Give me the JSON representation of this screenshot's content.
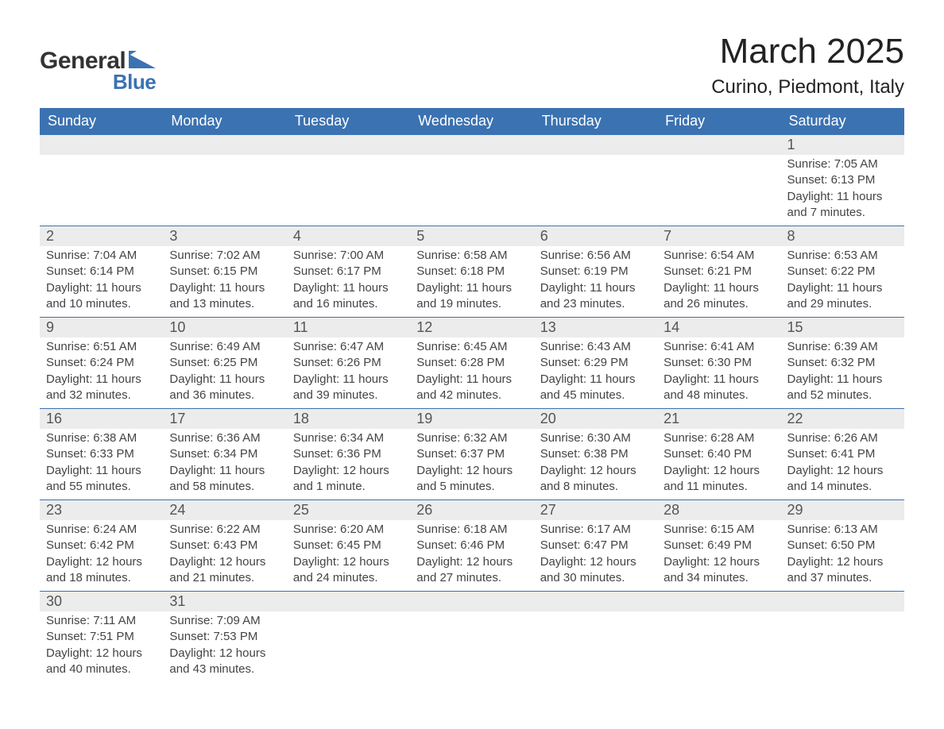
{
  "logo": {
    "text_main": "General",
    "text_sub": "Blue",
    "shape_color": "#3b72b1",
    "main_color": "#333333",
    "sub_color": "#3b72b1"
  },
  "title": "March 2025",
  "location": "Curino, Piedmont, Italy",
  "colors": {
    "header_bg": "#3b72b1",
    "header_text": "#ffffff",
    "daynum_bg": "#ececec",
    "body_text": "#444444",
    "row_border": "#3b72b1",
    "page_bg": "#ffffff"
  },
  "fonts": {
    "title_size_pt": 33,
    "location_size_pt": 18,
    "weekday_size_pt": 14,
    "daynum_size_pt": 14,
    "body_size_pt": 11
  },
  "weekdays": [
    "Sunday",
    "Monday",
    "Tuesday",
    "Wednesday",
    "Thursday",
    "Friday",
    "Saturday"
  ],
  "weeks": [
    [
      null,
      null,
      null,
      null,
      null,
      null,
      {
        "n": "1",
        "sunrise": "Sunrise: 7:05 AM",
        "sunset": "Sunset: 6:13 PM",
        "daylight": "Daylight: 11 hours and 7 minutes."
      }
    ],
    [
      {
        "n": "2",
        "sunrise": "Sunrise: 7:04 AM",
        "sunset": "Sunset: 6:14 PM",
        "daylight": "Daylight: 11 hours and 10 minutes."
      },
      {
        "n": "3",
        "sunrise": "Sunrise: 7:02 AM",
        "sunset": "Sunset: 6:15 PM",
        "daylight": "Daylight: 11 hours and 13 minutes."
      },
      {
        "n": "4",
        "sunrise": "Sunrise: 7:00 AM",
        "sunset": "Sunset: 6:17 PM",
        "daylight": "Daylight: 11 hours and 16 minutes."
      },
      {
        "n": "5",
        "sunrise": "Sunrise: 6:58 AM",
        "sunset": "Sunset: 6:18 PM",
        "daylight": "Daylight: 11 hours and 19 minutes."
      },
      {
        "n": "6",
        "sunrise": "Sunrise: 6:56 AM",
        "sunset": "Sunset: 6:19 PM",
        "daylight": "Daylight: 11 hours and 23 minutes."
      },
      {
        "n": "7",
        "sunrise": "Sunrise: 6:54 AM",
        "sunset": "Sunset: 6:21 PM",
        "daylight": "Daylight: 11 hours and 26 minutes."
      },
      {
        "n": "8",
        "sunrise": "Sunrise: 6:53 AM",
        "sunset": "Sunset: 6:22 PM",
        "daylight": "Daylight: 11 hours and 29 minutes."
      }
    ],
    [
      {
        "n": "9",
        "sunrise": "Sunrise: 6:51 AM",
        "sunset": "Sunset: 6:24 PM",
        "daylight": "Daylight: 11 hours and 32 minutes."
      },
      {
        "n": "10",
        "sunrise": "Sunrise: 6:49 AM",
        "sunset": "Sunset: 6:25 PM",
        "daylight": "Daylight: 11 hours and 36 minutes."
      },
      {
        "n": "11",
        "sunrise": "Sunrise: 6:47 AM",
        "sunset": "Sunset: 6:26 PM",
        "daylight": "Daylight: 11 hours and 39 minutes."
      },
      {
        "n": "12",
        "sunrise": "Sunrise: 6:45 AM",
        "sunset": "Sunset: 6:28 PM",
        "daylight": "Daylight: 11 hours and 42 minutes."
      },
      {
        "n": "13",
        "sunrise": "Sunrise: 6:43 AM",
        "sunset": "Sunset: 6:29 PM",
        "daylight": "Daylight: 11 hours and 45 minutes."
      },
      {
        "n": "14",
        "sunrise": "Sunrise: 6:41 AM",
        "sunset": "Sunset: 6:30 PM",
        "daylight": "Daylight: 11 hours and 48 minutes."
      },
      {
        "n": "15",
        "sunrise": "Sunrise: 6:39 AM",
        "sunset": "Sunset: 6:32 PM",
        "daylight": "Daylight: 11 hours and 52 minutes."
      }
    ],
    [
      {
        "n": "16",
        "sunrise": "Sunrise: 6:38 AM",
        "sunset": "Sunset: 6:33 PM",
        "daylight": "Daylight: 11 hours and 55 minutes."
      },
      {
        "n": "17",
        "sunrise": "Sunrise: 6:36 AM",
        "sunset": "Sunset: 6:34 PM",
        "daylight": "Daylight: 11 hours and 58 minutes."
      },
      {
        "n": "18",
        "sunrise": "Sunrise: 6:34 AM",
        "sunset": "Sunset: 6:36 PM",
        "daylight": "Daylight: 12 hours and 1 minute."
      },
      {
        "n": "19",
        "sunrise": "Sunrise: 6:32 AM",
        "sunset": "Sunset: 6:37 PM",
        "daylight": "Daylight: 12 hours and 5 minutes."
      },
      {
        "n": "20",
        "sunrise": "Sunrise: 6:30 AM",
        "sunset": "Sunset: 6:38 PM",
        "daylight": "Daylight: 12 hours and 8 minutes."
      },
      {
        "n": "21",
        "sunrise": "Sunrise: 6:28 AM",
        "sunset": "Sunset: 6:40 PM",
        "daylight": "Daylight: 12 hours and 11 minutes."
      },
      {
        "n": "22",
        "sunrise": "Sunrise: 6:26 AM",
        "sunset": "Sunset: 6:41 PM",
        "daylight": "Daylight: 12 hours and 14 minutes."
      }
    ],
    [
      {
        "n": "23",
        "sunrise": "Sunrise: 6:24 AM",
        "sunset": "Sunset: 6:42 PM",
        "daylight": "Daylight: 12 hours and 18 minutes."
      },
      {
        "n": "24",
        "sunrise": "Sunrise: 6:22 AM",
        "sunset": "Sunset: 6:43 PM",
        "daylight": "Daylight: 12 hours and 21 minutes."
      },
      {
        "n": "25",
        "sunrise": "Sunrise: 6:20 AM",
        "sunset": "Sunset: 6:45 PM",
        "daylight": "Daylight: 12 hours and 24 minutes."
      },
      {
        "n": "26",
        "sunrise": "Sunrise: 6:18 AM",
        "sunset": "Sunset: 6:46 PM",
        "daylight": "Daylight: 12 hours and 27 minutes."
      },
      {
        "n": "27",
        "sunrise": "Sunrise: 6:17 AM",
        "sunset": "Sunset: 6:47 PM",
        "daylight": "Daylight: 12 hours and 30 minutes."
      },
      {
        "n": "28",
        "sunrise": "Sunrise: 6:15 AM",
        "sunset": "Sunset: 6:49 PM",
        "daylight": "Daylight: 12 hours and 34 minutes."
      },
      {
        "n": "29",
        "sunrise": "Sunrise: 6:13 AM",
        "sunset": "Sunset: 6:50 PM",
        "daylight": "Daylight: 12 hours and 37 minutes."
      }
    ],
    [
      {
        "n": "30",
        "sunrise": "Sunrise: 7:11 AM",
        "sunset": "Sunset: 7:51 PM",
        "daylight": "Daylight: 12 hours and 40 minutes."
      },
      {
        "n": "31",
        "sunrise": "Sunrise: 7:09 AM",
        "sunset": "Sunset: 7:53 PM",
        "daylight": "Daylight: 12 hours and 43 minutes."
      },
      null,
      null,
      null,
      null,
      null
    ]
  ]
}
